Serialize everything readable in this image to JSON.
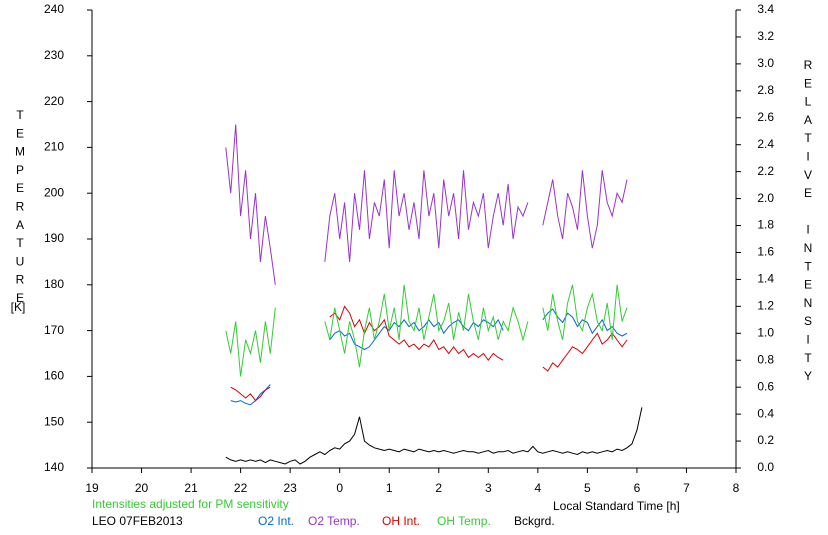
{
  "chart_data": {
    "type": "line",
    "station": "LEO 07FEB2013",
    "note": "Intensities adjusted for PM sensitivity",
    "note_color": "#33cc33",
    "x_label": "Local Standard Time [h]",
    "y_label": "TEMPERATURE",
    "y_unit": "[K]",
    "y2_label": "RELATIVE INTENSITY",
    "xlim": [
      19,
      32
    ],
    "xticks": [
      19,
      20,
      21,
      22,
      23,
      {
        "value": 24,
        "label": "0"
      },
      {
        "value": 25,
        "label": "1"
      },
      {
        "value": 26,
        "label": "2"
      },
      {
        "value": 27,
        "label": "3"
      },
      {
        "value": 28,
        "label": "4"
      },
      {
        "value": 29,
        "label": "5"
      },
      {
        "value": 30,
        "label": "6"
      },
      {
        "value": 31,
        "label": "7"
      },
      {
        "value": 32,
        "label": "8"
      }
    ],
    "ylim": [
      140,
      240
    ],
    "yticks": [
      140,
      150,
      160,
      170,
      180,
      190,
      200,
      210,
      220,
      230,
      240
    ],
    "y2lim": [
      0,
      3.4
    ],
    "y2ticks": [
      {
        "value": 0,
        "label": "0.0"
      },
      0.2,
      0.4,
      0.6,
      0.8,
      {
        "value": 1,
        "label": "1.0"
      },
      1.2,
      1.4,
      1.6,
      1.8,
      {
        "value": 2,
        "label": "2.0"
      },
      2.2,
      2.4,
      2.6,
      2.8,
      {
        "value": 3,
        "label": "3.0"
      },
      3.2,
      3.4
    ],
    "x": [
      21.7,
      21.8,
      21.9,
      22.0,
      22.1,
      22.2,
      22.3,
      22.4,
      22.5,
      22.6,
      22.7,
      22.8,
      22.9,
      23.0,
      23.1,
      23.2,
      23.3,
      23.4,
      23.5,
      23.6,
      23.7,
      23.8,
      23.9,
      24.0,
      24.1,
      24.2,
      24.3,
      24.4,
      24.5,
      24.6,
      24.7,
      24.8,
      24.9,
      25.0,
      25.1,
      25.2,
      25.3,
      25.4,
      25.5,
      25.6,
      25.7,
      25.8,
      25.9,
      26.0,
      26.1,
      26.2,
      26.3,
      26.4,
      26.5,
      26.6,
      26.7,
      26.8,
      26.9,
      27.0,
      27.1,
      27.2,
      27.3,
      27.4,
      27.5,
      27.6,
      27.7,
      27.8,
      27.9,
      28.0,
      28.1,
      28.2,
      28.3,
      28.4,
      28.5,
      28.6,
      28.7,
      28.8,
      28.9,
      29.0,
      29.1,
      29.2,
      29.3,
      29.4,
      29.5,
      29.6,
      29.7,
      29.8,
      29.9,
      30.0,
      30.1
    ],
    "series": [
      {
        "name": "O2 Int.",
        "color": "#0066dd",
        "axis": "y2",
        "values": [
          null,
          0.5,
          0.49,
          0.5,
          0.48,
          0.47,
          0.5,
          0.55,
          0.58,
          0.62,
          null,
          null,
          null,
          null,
          null,
          null,
          null,
          null,
          null,
          null,
          null,
          0.95,
          1.0,
          1.02,
          0.98,
          1.0,
          0.92,
          0.9,
          0.88,
          0.9,
          0.95,
          1.0,
          1.05,
          1.02,
          1.08,
          1.05,
          1.1,
          1.05,
          1.08,
          1.02,
          1.05,
          1.1,
          1.05,
          1.08,
          1.0,
          1.05,
          1.08,
          1.1,
          1.05,
          1.02,
          1.08,
          1.05,
          1.1,
          1.08,
          1.05,
          1.1,
          1.02,
          null,
          null,
          null,
          null,
          1.05,
          null,
          null,
          1.1,
          1.15,
          1.18,
          1.12,
          1.08,
          1.15,
          1.12,
          1.05,
          1.1,
          1.08,
          1.0,
          1.05,
          1.1,
          1.02,
          1.05,
          1.0,
          0.98,
          1.0,
          null,
          null,
          null
        ]
      },
      {
        "name": "O2 Temp.",
        "color": "#9933cc",
        "values": [
          210,
          200,
          215,
          195,
          205,
          190,
          200,
          185,
          195,
          188,
          180,
          null,
          null,
          null,
          null,
          null,
          null,
          null,
          null,
          null,
          185,
          195,
          200,
          190,
          198,
          185,
          200,
          192,
          205,
          190,
          198,
          195,
          203,
          188,
          205,
          195,
          200,
          192,
          198,
          190,
          205,
          195,
          200,
          188,
          203,
          195,
          200,
          190,
          205,
          192,
          198,
          195,
          200,
          188,
          195,
          200,
          193,
          202,
          190,
          197,
          195,
          198,
          null,
          null,
          193,
          198,
          203,
          195,
          190,
          200,
          197,
          192,
          205,
          195,
          188,
          193,
          205,
          198,
          195,
          200,
          198,
          203,
          null,
          null,
          null
        ]
      },
      {
        "name": "OH Int.",
        "color": "#dd0000",
        "axis": "y2",
        "values": [
          null,
          0.6,
          0.58,
          0.55,
          0.52,
          0.55,
          0.5,
          0.53,
          0.58,
          0.6,
          null,
          null,
          null,
          null,
          null,
          null,
          null,
          null,
          null,
          null,
          null,
          1.12,
          1.15,
          1.1,
          1.2,
          1.15,
          1.05,
          1.1,
          1.0,
          1.08,
          1.02,
          1.05,
          1.1,
          0.98,
          0.95,
          0.92,
          0.95,
          0.9,
          0.92,
          0.88,
          0.92,
          0.9,
          0.95,
          0.88,
          0.9,
          0.85,
          0.9,
          0.85,
          0.88,
          0.82,
          0.85,
          0.82,
          0.85,
          0.8,
          0.85,
          0.82,
          0.8,
          null,
          null,
          null,
          null,
          0.78,
          null,
          null,
          0.75,
          0.72,
          0.78,
          0.75,
          0.8,
          0.85,
          0.9,
          0.88,
          0.85,
          0.9,
          0.95,
          1.0,
          0.92,
          0.95,
          1.0,
          0.95,
          0.9,
          0.95,
          null,
          null,
          null
        ]
      },
      {
        "name": "OH Temp.",
        "color": "#33cc33",
        "values": [
          170,
          165,
          172,
          160,
          168,
          165,
          170,
          163,
          172,
          165,
          175,
          null,
          null,
          null,
          null,
          null,
          null,
          null,
          null,
          null,
          172,
          168,
          175,
          170,
          165,
          172,
          168,
          162,
          170,
          175,
          168,
          172,
          178,
          170,
          175,
          168,
          180,
          172,
          170,
          175,
          168,
          173,
          178,
          170,
          172,
          176,
          168,
          174,
          170,
          178,
          172,
          168,
          175,
          170,
          173,
          168,
          172,
          170,
          175,
          172,
          168,
          172,
          null,
          null,
          175,
          170,
          178,
          172,
          168,
          176,
          180,
          172,
          170,
          175,
          178,
          172,
          170,
          176,
          168,
          180,
          172,
          175,
          null,
          null,
          null
        ]
      },
      {
        "name": "Bckgrd.",
        "color": "#000000",
        "axis": "y2",
        "values": [
          0.08,
          0.06,
          0.05,
          0.06,
          0.05,
          0.06,
          0.05,
          0.06,
          0.04,
          0.06,
          0.05,
          0.04,
          0.03,
          0.05,
          0.06,
          0.03,
          0.05,
          0.08,
          0.1,
          0.12,
          0.1,
          0.13,
          0.15,
          0.14,
          0.18,
          0.2,
          0.25,
          0.38,
          0.2,
          0.17,
          0.15,
          0.14,
          0.13,
          0.14,
          0.13,
          0.12,
          0.14,
          0.13,
          0.12,
          0.14,
          0.13,
          0.12,
          0.13,
          0.12,
          0.13,
          0.12,
          0.11,
          0.12,
          0.13,
          0.12,
          0.12,
          0.11,
          0.12,
          0.13,
          0.11,
          0.12,
          0.12,
          0.13,
          0.11,
          0.12,
          0.13,
          0.12,
          0.16,
          0.12,
          0.11,
          0.12,
          0.13,
          0.12,
          0.11,
          0.12,
          0.11,
          0.1,
          0.12,
          0.11,
          0.12,
          0.11,
          0.12,
          0.13,
          0.12,
          0.14,
          0.13,
          0.15,
          0.18,
          0.28,
          0.45
        ]
      }
    ]
  }
}
